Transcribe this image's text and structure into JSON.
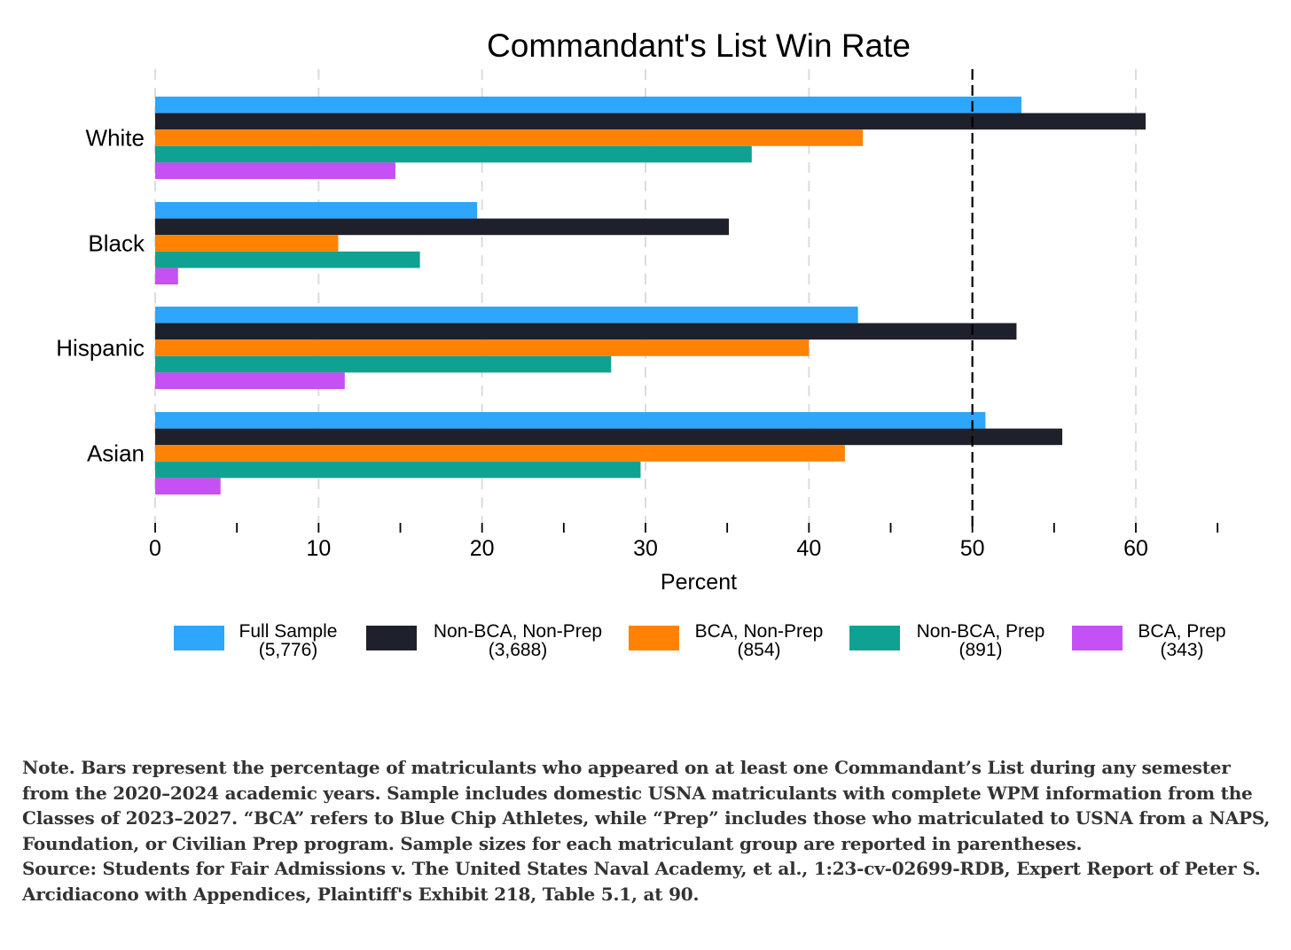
{
  "chart_data": {
    "type": "bar",
    "orientation": "horizontal",
    "title": "Commandant's List Win Rate",
    "xlabel": "Percent",
    "ylabel": "",
    "xlim": [
      0,
      65
    ],
    "xticks": [
      0,
      10,
      20,
      30,
      40,
      50,
      60
    ],
    "minor_xticks": [
      5,
      15,
      25,
      35,
      45,
      55,
      65
    ],
    "grid": true,
    "reference_line": {
      "x": 50,
      "style": "dashed",
      "color": "#000000"
    },
    "categories": [
      "White",
      "Black",
      "Hispanic",
      "Asian"
    ],
    "series": [
      {
        "name": "Full Sample",
        "n": "(5,776)",
        "color": "#2ea6fb",
        "values": [
          53.0,
          19.7,
          43.0,
          50.8
        ]
      },
      {
        "name": "Non-BCA, Non-Prep",
        "n": "(3,688)",
        "color": "#1e202b",
        "values": [
          60.6,
          35.1,
          52.7,
          55.5
        ]
      },
      {
        "name": "BCA, Non-Prep",
        "n": "(854)",
        "color": "#ff8205",
        "values": [
          43.3,
          11.2,
          40.0,
          42.2
        ]
      },
      {
        "name": "Non-BCA, Prep",
        "n": "(891)",
        "color": "#0fa292",
        "values": [
          36.5,
          16.2,
          27.9,
          29.7
        ]
      },
      {
        "name": "BCA, Prep",
        "n": "(343)",
        "color": "#c551f4",
        "values": [
          14.7,
          1.4,
          11.6,
          4.0
        ]
      }
    ],
    "legend_position": "bottom"
  },
  "note": {
    "text": "Note. Bars represent the percentage of matriculants who appeared on at least one Commandant’s List during any semester from the 2020–2024 academic years. Sample includes domestic USNA matriculants with complete WPM information from the Classes of 2023–2027. “BCA” refers to Blue Chip Athletes, while “Prep” includes those who matriculated to USNA from a NAPS, Foundation, or Civilian Prep program. Sample sizes for each matriculant group are reported in parentheses.",
    "source": "Source: Students for Fair Admissions v. The United States Naval Academy, et al., 1:23-cv-02699-RDB, Expert Report of Peter S. Arcidiacono with Appendices, Plaintiff's Exhibit 218, Table 5.1, at 90."
  }
}
